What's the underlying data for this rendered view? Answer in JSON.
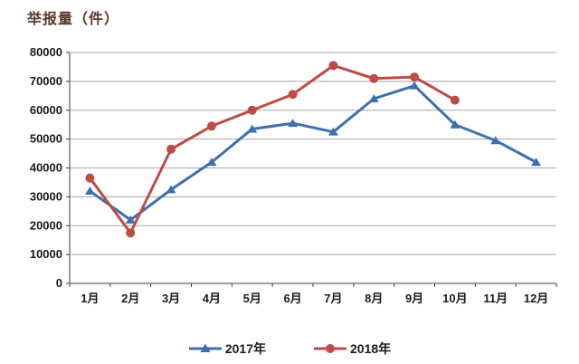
{
  "chart_data": {
    "type": "line",
    "title": "举报量（件）",
    "xlabel": "",
    "ylabel": "",
    "categories": [
      "1月",
      "2月",
      "3月",
      "4月",
      "5月",
      "6月",
      "7月",
      "8月",
      "9月",
      "10月",
      "11月",
      "12月"
    ],
    "series": [
      {
        "name": "2017年",
        "color": "#3f6fae",
        "marker": "triangle",
        "values": [
          32000,
          22000,
          32500,
          42000,
          53500,
          55500,
          52500,
          64000,
          68500,
          55000,
          49500,
          42000
        ]
      },
      {
        "name": "2018年",
        "color": "#be4b48",
        "marker": "circle",
        "values": [
          36500,
          17500,
          46500,
          54500,
          60000,
          65500,
          75500,
          71000,
          71500,
          63500,
          null,
          null
        ]
      }
    ],
    "ylim": [
      0,
      80000
    ],
    "ytick_step": 10000,
    "grid": true,
    "legend_position": "bottom"
  },
  "colors": {
    "grid": "#a6a6a6",
    "axis": "#404040",
    "tick_text": "#1a1a1a",
    "title_text": "#5b3a29",
    "background": "#ffffff"
  }
}
